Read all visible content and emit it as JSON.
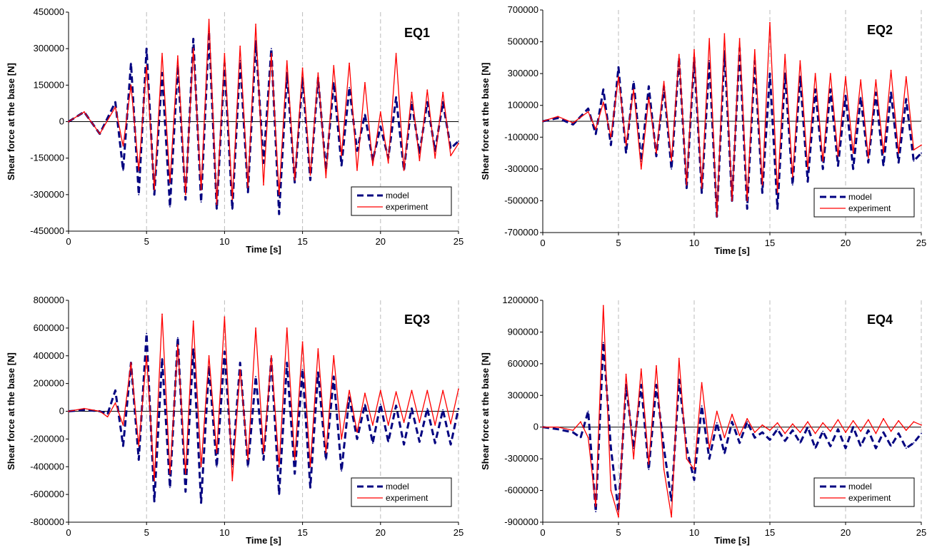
{
  "chart_data": [
    {
      "type": "line",
      "title": "EQ1",
      "xlabel": "Time [s]",
      "ylabel": "Shear force at the base [N]",
      "xlim": [
        0,
        25
      ],
      "ylim": [
        -450000,
        450000
      ],
      "xticks": [
        0,
        5,
        10,
        15,
        20,
        25
      ],
      "yticks": [
        -450000,
        -300000,
        -150000,
        0,
        150000,
        300000,
        450000
      ],
      "grid": true,
      "legend": "bottom-right",
      "series": [
        {
          "name": "model",
          "color": "#000080",
          "style": "dashed",
          "x": [
            0,
            1,
            2,
            3,
            3.5,
            4,
            4.5,
            5,
            5.5,
            6,
            6.5,
            7,
            7.5,
            8,
            8.5,
            9,
            9.5,
            10,
            10.5,
            11,
            11.5,
            12,
            12.5,
            13,
            13.5,
            14,
            14.5,
            15,
            15.5,
            16,
            16.5,
            17,
            17.5,
            18,
            18.5,
            19,
            19.5,
            20,
            20.5,
            21,
            21.5,
            22,
            22.5,
            23,
            23.5,
            24,
            24.5,
            25
          ],
          "values": [
            0,
            40000,
            -50000,
            80000,
            -200000,
            240000,
            -300000,
            300000,
            -300000,
            200000,
            -350000,
            230000,
            -320000,
            340000,
            -330000,
            370000,
            -360000,
            240000,
            -360000,
            250000,
            -290000,
            330000,
            -170000,
            300000,
            -380000,
            200000,
            -250000,
            180000,
            -240000,
            180000,
            -200000,
            160000,
            -180000,
            140000,
            -120000,
            30000,
            -160000,
            -20000,
            -150000,
            100000,
            -200000,
            80000,
            -130000,
            80000,
            -120000,
            80000,
            -110000,
            -80000
          ]
        },
        {
          "name": "experiment",
          "color": "#ff0000",
          "style": "solid",
          "x": [
            0,
            1,
            2,
            3,
            3.5,
            4,
            4.5,
            5,
            5.5,
            6,
            6.5,
            7,
            7.5,
            8,
            8.5,
            9,
            9.5,
            10,
            10.5,
            11,
            11.5,
            12,
            12.5,
            13,
            13.5,
            14,
            14.5,
            15,
            15.5,
            16,
            16.5,
            17,
            17.5,
            18,
            18.5,
            19,
            19.5,
            20,
            20.5,
            21,
            21.5,
            22,
            22.5,
            23,
            23.5,
            24,
            24.5,
            25
          ],
          "values": [
            0,
            40000,
            -50000,
            60000,
            -100000,
            150000,
            -200000,
            230000,
            -280000,
            280000,
            -250000,
            270000,
            -300000,
            300000,
            -280000,
            420000,
            -340000,
            280000,
            -320000,
            310000,
            -270000,
            400000,
            -260000,
            280000,
            -300000,
            250000,
            -240000,
            220000,
            -220000,
            200000,
            -230000,
            230000,
            -140000,
            240000,
            -200000,
            160000,
            -180000,
            40000,
            -170000,
            280000,
            -200000,
            120000,
            -160000,
            130000,
            -150000,
            120000,
            -140000,
            -90000
          ]
        }
      ]
    },
    {
      "type": "line",
      "title": "EQ2",
      "xlabel": "Time [s]",
      "ylabel": "Shear force at the base [N]",
      "xlim": [
        0,
        25
      ],
      "ylim": [
        -700000,
        700000
      ],
      "xticks": [
        0,
        5,
        10,
        15,
        20,
        25
      ],
      "yticks": [
        -700000,
        -500000,
        -300000,
        -100000,
        100000,
        300000,
        500000,
        700000
      ],
      "grid": true,
      "legend": "bottom-right",
      "series": [
        {
          "name": "model",
          "color": "#000080",
          "style": "dashed",
          "x": [
            0,
            1,
            2,
            3,
            3.5,
            4,
            4.5,
            5,
            5.5,
            6,
            6.5,
            7,
            7.5,
            8,
            8.5,
            9,
            9.5,
            10,
            10.5,
            11,
            11.5,
            12,
            12.5,
            13,
            13.5,
            14,
            14.5,
            15,
            15.5,
            16,
            16.5,
            17,
            17.5,
            18,
            18.5,
            19,
            19.5,
            20,
            20.5,
            21,
            21.5,
            22,
            22.5,
            23,
            23.5,
            24,
            24.5,
            25
          ],
          "values": [
            0,
            20000,
            -20000,
            80000,
            -80000,
            200000,
            -150000,
            340000,
            -200000,
            250000,
            -250000,
            220000,
            -220000,
            220000,
            -300000,
            400000,
            -420000,
            400000,
            -450000,
            380000,
            -600000,
            440000,
            -500000,
            460000,
            -550000,
            380000,
            -450000,
            300000,
            -550000,
            300000,
            -400000,
            280000,
            -380000,
            200000,
            -300000,
            200000,
            -280000,
            160000,
            -300000,
            150000,
            -260000,
            180000,
            -280000,
            180000,
            -260000,
            140000,
            -250000,
            -200000
          ]
        },
        {
          "name": "experiment",
          "color": "#ff0000",
          "style": "solid",
          "x": [
            0,
            1,
            2,
            3,
            3.5,
            4,
            4.5,
            5,
            5.5,
            6,
            6.5,
            7,
            7.5,
            8,
            8.5,
            9,
            9.5,
            10,
            10.5,
            11,
            11.5,
            12,
            12.5,
            13,
            13.5,
            14,
            14.5,
            15,
            15.5,
            16,
            16.5,
            17,
            17.5,
            18,
            18.5,
            19,
            19.5,
            20,
            20.5,
            21,
            21.5,
            22,
            22.5,
            23,
            23.5,
            24,
            24.5,
            25
          ],
          "values": [
            0,
            30000,
            -10000,
            60000,
            -50000,
            120000,
            -100000,
            280000,
            -150000,
            200000,
            -300000,
            150000,
            -200000,
            250000,
            -250000,
            420000,
            -400000,
            450000,
            -420000,
            520000,
            -600000,
            550000,
            -500000,
            520000,
            -500000,
            450000,
            -400000,
            620000,
            -450000,
            420000,
            -350000,
            380000,
            -300000,
            300000,
            -250000,
            300000,
            -220000,
            280000,
            -200000,
            260000,
            -230000,
            260000,
            -200000,
            320000,
            -200000,
            280000,
            -180000,
            -150000
          ]
        }
      ]
    },
    {
      "type": "line",
      "title": "EQ3",
      "xlabel": "Time [s]",
      "ylabel": "Shear force at the base [N]",
      "xlim": [
        0,
        25
      ],
      "ylim": [
        -800000,
        800000
      ],
      "xticks": [
        0,
        5,
        10,
        15,
        20,
        25
      ],
      "yticks": [
        -800000,
        -600000,
        -400000,
        -200000,
        0,
        200000,
        400000,
        600000,
        800000
      ],
      "grid": true,
      "legend": "bottom-right",
      "series": [
        {
          "name": "model",
          "color": "#000080",
          "style": "dashed",
          "x": [
            0,
            1,
            2,
            2.5,
            3,
            3.5,
            4,
            4.5,
            5,
            5.5,
            6,
            6.5,
            7,
            7.5,
            8,
            8.5,
            9,
            9.5,
            10,
            10.5,
            11,
            11.5,
            12,
            12.5,
            13,
            13.5,
            14,
            14.5,
            15,
            15.5,
            16,
            16.5,
            17,
            17.5,
            18,
            18.5,
            19,
            19.5,
            20,
            20.5,
            21,
            21.5,
            22,
            22.5,
            23,
            23.5,
            24,
            24.5,
            25
          ],
          "values": [
            0,
            10000,
            0,
            -20000,
            150000,
            -250000,
            350000,
            -350000,
            560000,
            -650000,
            380000,
            -550000,
            530000,
            -580000,
            450000,
            -660000,
            320000,
            -400000,
            430000,
            -400000,
            350000,
            -400000,
            250000,
            -350000,
            380000,
            -600000,
            350000,
            -450000,
            300000,
            -550000,
            280000,
            -350000,
            250000,
            -430000,
            100000,
            -200000,
            50000,
            -230000,
            50000,
            -220000,
            40000,
            -240000,
            20000,
            -220000,
            20000,
            -230000,
            10000,
            -240000,
            20000
          ]
        },
        {
          "name": "experiment",
          "color": "#ff0000",
          "style": "solid",
          "x": [
            0,
            1,
            2,
            2.5,
            3,
            3.5,
            4,
            4.5,
            5,
            5.5,
            6,
            6.5,
            7,
            7.5,
            8,
            8.5,
            9,
            9.5,
            10,
            10.5,
            11,
            11.5,
            12,
            12.5,
            13,
            13.5,
            14,
            14.5,
            15,
            15.5,
            16,
            16.5,
            17,
            17.5,
            18,
            18.5,
            19,
            19.5,
            20,
            20.5,
            21,
            21.5,
            22,
            22.5,
            23,
            23.5,
            24,
            24.5,
            25
          ],
          "values": [
            0,
            20000,
            0,
            -40000,
            60000,
            -100000,
            350000,
            -250000,
            400000,
            -500000,
            700000,
            -450000,
            480000,
            -450000,
            650000,
            -400000,
            400000,
            -300000,
            680000,
            -500000,
            300000,
            -350000,
            600000,
            -300000,
            400000,
            -400000,
            600000,
            -350000,
            500000,
            -400000,
            450000,
            -300000,
            400000,
            -200000,
            150000,
            -150000,
            130000,
            -100000,
            150000,
            -100000,
            140000,
            -80000,
            150000,
            -80000,
            150000,
            -100000,
            150000,
            -90000,
            160000
          ]
        }
      ]
    },
    {
      "type": "line",
      "title": "EQ4",
      "xlabel": "Time [s]",
      "ylabel": "Shear force at the base [N]",
      "xlim": [
        0,
        25
      ],
      "ylim": [
        -900000,
        1200000
      ],
      "xticks": [
        0,
        5,
        10,
        15,
        20,
        25
      ],
      "yticks": [
        -900000,
        -600000,
        -300000,
        0,
        300000,
        600000,
        900000,
        1200000
      ],
      "grid": true,
      "legend": "bottom-right",
      "series": [
        {
          "name": "model",
          "color": "#000080",
          "style": "dashed",
          "x": [
            0,
            1,
            2,
            2.5,
            3,
            3.5,
            4,
            4.5,
            5,
            5.5,
            6,
            6.5,
            7,
            7.5,
            8,
            8.5,
            9,
            9.5,
            10,
            10.5,
            11,
            11.5,
            12,
            12.5,
            13,
            13.5,
            14,
            14.5,
            15,
            15.5,
            16,
            16.5,
            17,
            17.5,
            18,
            18.5,
            19,
            19.5,
            20,
            20.5,
            21,
            21.5,
            22,
            22.5,
            23,
            23.5,
            24,
            24.5,
            25
          ],
          "values": [
            0,
            -20000,
            -50000,
            -100000,
            150000,
            -800000,
            800000,
            -200000,
            -800000,
            400000,
            -200000,
            400000,
            -400000,
            400000,
            -200000,
            -700000,
            450000,
            -200000,
            -500000,
            200000,
            -300000,
            40000,
            -250000,
            50000,
            -150000,
            50000,
            -100000,
            -50000,
            -120000,
            -20000,
            -130000,
            -30000,
            -150000,
            0,
            -200000,
            -40000,
            -180000,
            -20000,
            -200000,
            0,
            -180000,
            -30000,
            -200000,
            -50000,
            -180000,
            -60000,
            -200000,
            -150000,
            -60000
          ]
        },
        {
          "name": "experiment",
          "color": "#ff0000",
          "style": "solid",
          "x": [
            0,
            1,
            2,
            2.5,
            3,
            3.5,
            4,
            4.5,
            5,
            5.5,
            6,
            6.5,
            7,
            7.5,
            8,
            8.5,
            9,
            9.5,
            10,
            10.5,
            11,
            11.5,
            12,
            12.5,
            13,
            13.5,
            14,
            14.5,
            15,
            15.5,
            16,
            16.5,
            17,
            17.5,
            18,
            18.5,
            19,
            19.5,
            20,
            20.5,
            21,
            21.5,
            22,
            22.5,
            23,
            23.5,
            24,
            24.5,
            25
          ],
          "values": [
            0,
            0,
            -30000,
            50000,
            -100000,
            -750000,
            1150000,
            -600000,
            -850000,
            500000,
            -300000,
            550000,
            -350000,
            580000,
            -400000,
            -850000,
            650000,
            -300000,
            -400000,
            420000,
            -200000,
            150000,
            -100000,
            120000,
            -80000,
            80000,
            -50000,
            20000,
            -30000,
            40000,
            -60000,
            30000,
            -50000,
            50000,
            -60000,
            40000,
            -40000,
            70000,
            -50000,
            60000,
            -40000,
            70000,
            -60000,
            80000,
            -40000,
            60000,
            -30000,
            50000,
            20000
          ]
        }
      ]
    }
  ]
}
